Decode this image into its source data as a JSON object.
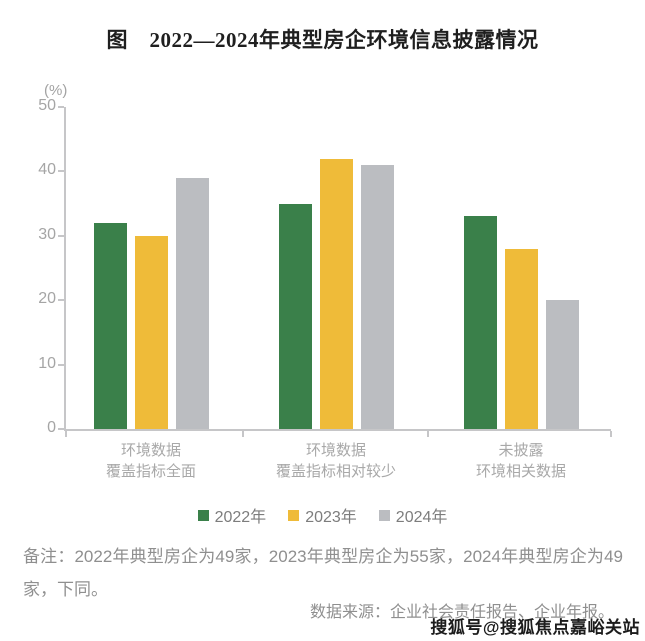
{
  "title": "图　2022—2024年典型房企环境信息披露情况",
  "note": "备注：2022年典型房企为49家，2023年典型房企为55家，2024年典型房企为49家，下同。",
  "source": "数据来源：企业社会责任报告、企业年报。",
  "watermark": "搜狐号@搜狐焦点嘉峪关站",
  "colors": {
    "axis": "#c6c6c8",
    "tick_label": "#a5a5a5",
    "category_label": "#a8a8a8",
    "note_text": "#8f8f8f",
    "title_text": "#1f1f1f"
  },
  "chart_data": {
    "type": "bar",
    "title": "图　2022—2024年典型房企环境信息披露情况",
    "unit_label": "(%)",
    "xlabel": "",
    "ylabel": "(%)",
    "ylim": [
      0,
      50
    ],
    "yticks": [
      0,
      10,
      20,
      30,
      40,
      50
    ],
    "grid": false,
    "legend_position": "bottom",
    "categories": [
      [
        "环境数据",
        "覆盖指标全面"
      ],
      [
        "环境数据",
        "覆盖指标相对较少"
      ],
      [
        "未披露",
        "环境相关数据"
      ]
    ],
    "series": [
      {
        "name": "2022年",
        "color": "#3A804A",
        "values": [
          32,
          35,
          33
        ]
      },
      {
        "name": "2023年",
        "color": "#EFBB39",
        "values": [
          30,
          42,
          28
        ]
      },
      {
        "name": "2024年",
        "color": "#BBBDC1",
        "values": [
          39,
          41,
          20
        ]
      }
    ]
  }
}
